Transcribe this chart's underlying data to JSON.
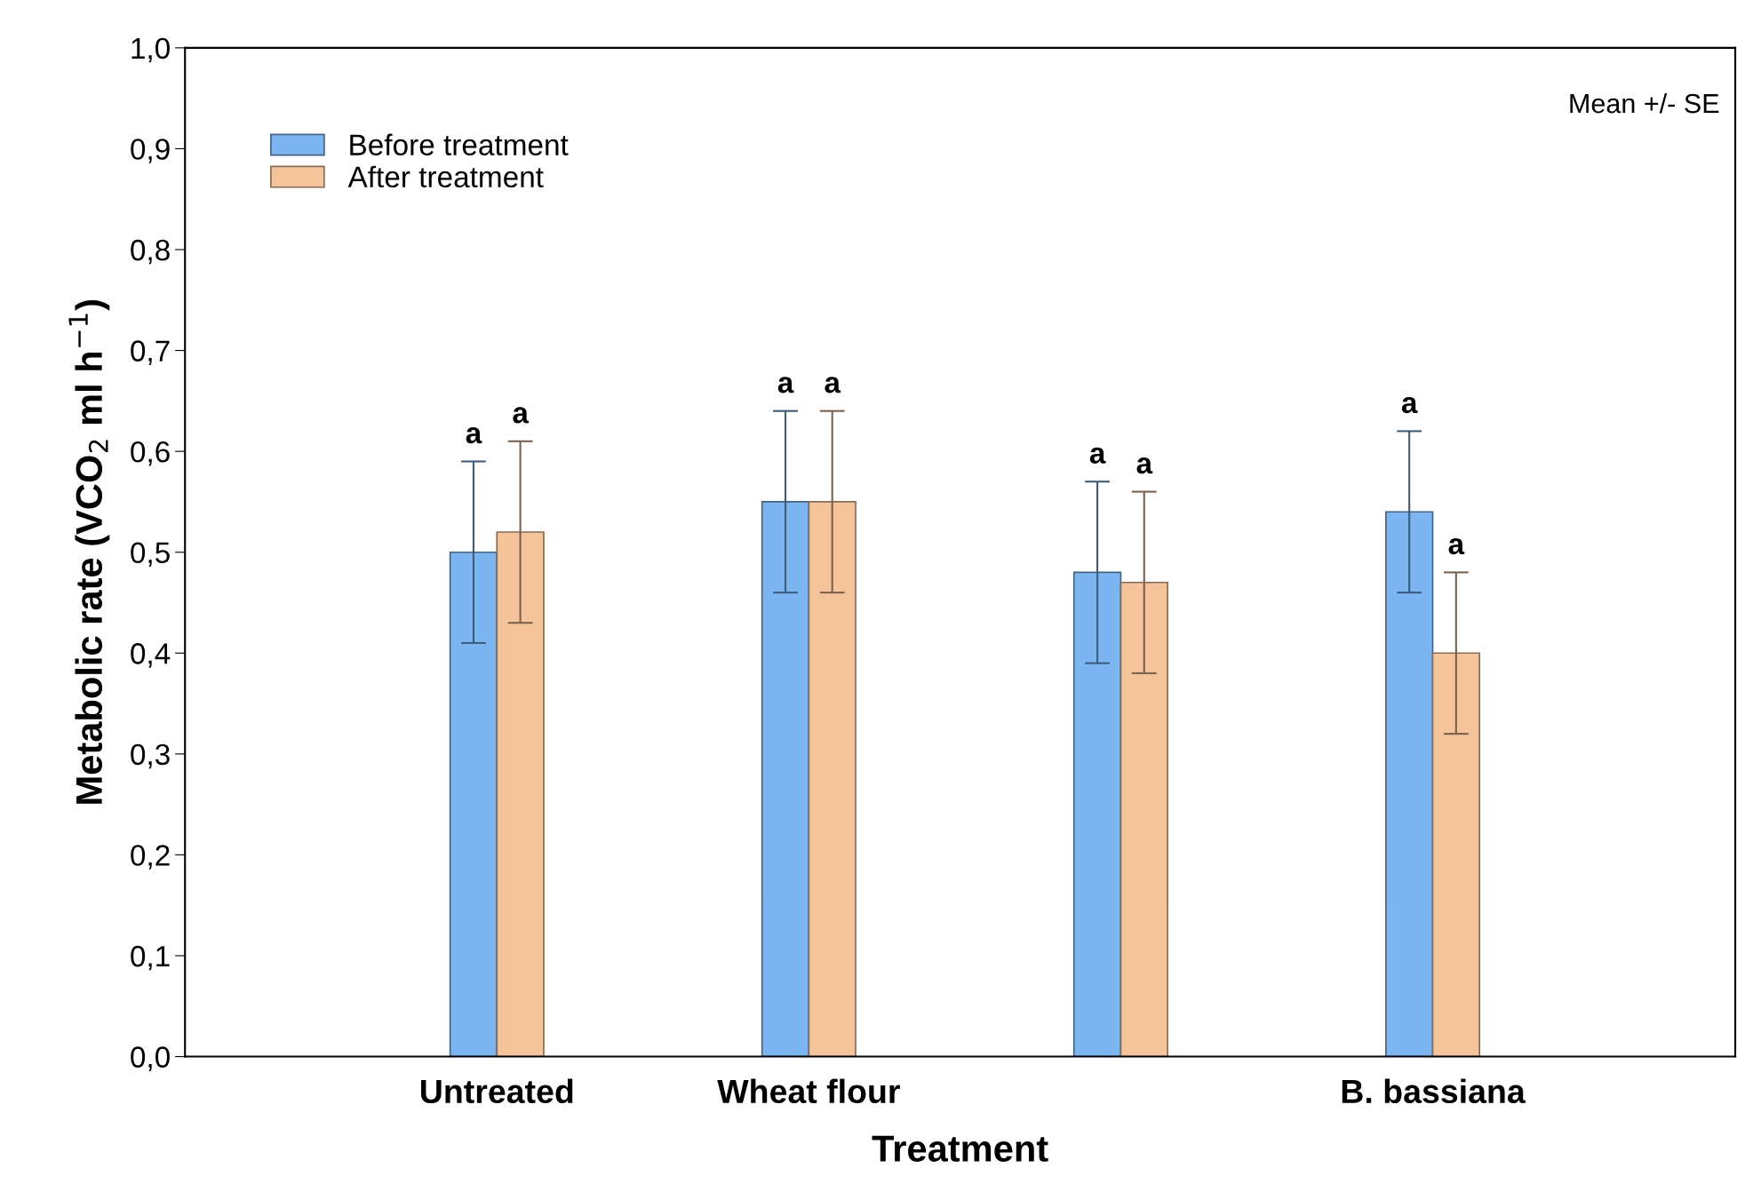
{
  "chart_data": {
    "type": "bar",
    "xlabel": "Treatment",
    "ylabel": "Metabolic rate (VCO$_{2}$ ml h$^{−1}$)",
    "categories": [
      "Untreated",
      "Wheat flour",
      null,
      "B. bassiana"
    ],
    "series": [
      {
        "name": "Before treatment",
        "color": "#7cb6f2",
        "values": [
          0.5,
          0.55,
          0.48,
          0.54
        ],
        "errors": [
          0.09,
          0.09,
          0.09,
          0.08
        ]
      },
      {
        "name": "After treatment",
        "color": "#f5c49a",
        "values": [
          0.52,
          0.55,
          0.47,
          0.4
        ],
        "errors": [
          0.09,
          0.09,
          0.09,
          0.08
        ]
      }
    ],
    "ylim": [
      0,
      1
    ],
    "yticks": [
      {
        "value": 0,
        "label": "0,0"
      },
      {
        "value": 0.1,
        "label": "0,1"
      },
      {
        "value": 0.2,
        "label": "0,2"
      },
      {
        "value": 0.3,
        "label": "0,3"
      },
      {
        "value": 0.4,
        "label": "0,4"
      },
      {
        "value": 0.5,
        "label": "0,5"
      },
      {
        "value": 0.6,
        "label": "0,6"
      },
      {
        "value": 0.7,
        "label": "0,7"
      },
      {
        "value": 0.8,
        "label": "0,8"
      },
      {
        "value": 0.9,
        "label": "0,9"
      },
      {
        "value": 1,
        "label": "1,0"
      }
    ],
    "annotations": [
      "Mean +/- SE",
      "a",
      "a",
      "a",
      "a",
      "a",
      "a",
      "a",
      "a"
    ],
    "legend": "top left",
    "grid": false
  }
}
